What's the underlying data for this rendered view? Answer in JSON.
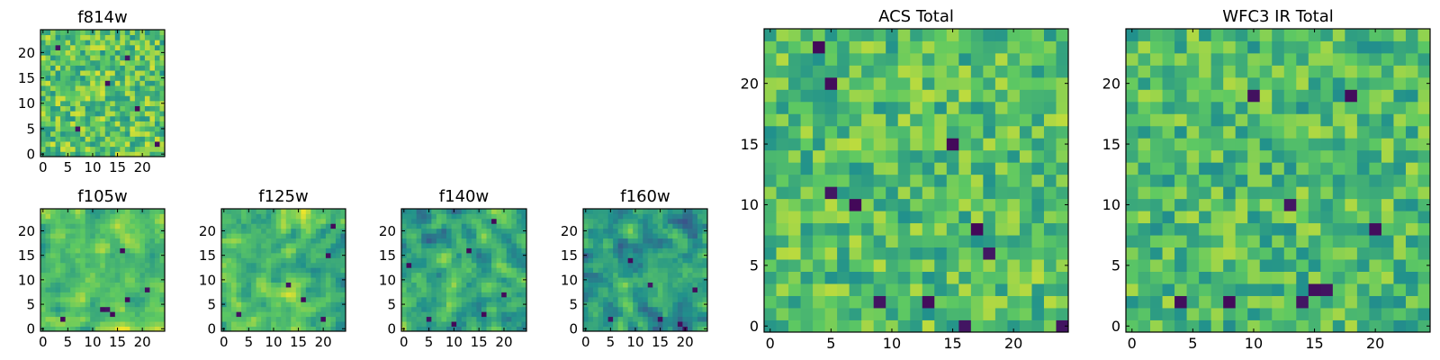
{
  "colormap": {
    "name": "viridis",
    "stops": [
      "#440154",
      "#3b528b",
      "#21918c",
      "#5ec962",
      "#fde725"
    ]
  },
  "chart_data": [
    {
      "id": "f814w",
      "type": "heatmap",
      "title": "f814w",
      "grid_size": [
        25,
        25
      ],
      "xlim": [
        -0.5,
        24.5
      ],
      "ylim": [
        -0.5,
        24.5
      ],
      "xticks": [
        0,
        5,
        10,
        15,
        20
      ],
      "yticks": [
        0,
        5,
        10,
        15,
        20
      ],
      "mean_level": 0.72,
      "spread": 0.22,
      "smoothness": 0,
      "dark_pixels": [
        [
          3,
          21
        ],
        [
          13,
          14
        ],
        [
          23,
          2
        ],
        [
          17,
          19
        ],
        [
          7,
          5
        ],
        [
          19,
          9
        ]
      ]
    },
    {
      "id": "f105w",
      "type": "heatmap",
      "title": "f105w",
      "grid_size": [
        25,
        25
      ],
      "xlim": [
        -0.5,
        24.5
      ],
      "ylim": [
        -0.5,
        24.5
      ],
      "xticks": [
        0,
        5,
        10,
        15,
        20
      ],
      "yticks": [
        0,
        5,
        10,
        15,
        20
      ],
      "mean_level": 0.72,
      "spread": 0.2,
      "smoothness": 1,
      "dark_pixels": [
        [
          12,
          4
        ],
        [
          13,
          4
        ],
        [
          14,
          3
        ],
        [
          17,
          6
        ],
        [
          21,
          8
        ],
        [
          16,
          16
        ],
        [
          4,
          2
        ]
      ]
    },
    {
      "id": "f125w",
      "type": "heatmap",
      "title": "f125w",
      "grid_size": [
        25,
        25
      ],
      "xlim": [
        -0.5,
        24.5
      ],
      "ylim": [
        -0.5,
        24.5
      ],
      "xticks": [
        0,
        5,
        10,
        15,
        20
      ],
      "yticks": [
        0,
        5,
        10,
        15,
        20
      ],
      "mean_level": 0.68,
      "spread": 0.22,
      "smoothness": 1,
      "dark_pixels": [
        [
          22,
          21
        ],
        [
          21,
          15
        ],
        [
          13,
          9
        ],
        [
          3,
          3
        ],
        [
          20,
          2
        ],
        [
          16,
          6
        ]
      ]
    },
    {
      "id": "f140w",
      "type": "heatmap",
      "title": "f140w",
      "grid_size": [
        25,
        25
      ],
      "xlim": [
        -0.5,
        24.5
      ],
      "ylim": [
        -0.5,
        24.5
      ],
      "xticks": [
        0,
        5,
        10,
        15,
        20
      ],
      "yticks": [
        0,
        5,
        10,
        15,
        20
      ],
      "mean_level": 0.6,
      "spread": 0.24,
      "smoothness": 1,
      "dark_pixels": [
        [
          18,
          22
        ],
        [
          13,
          16
        ],
        [
          1,
          13
        ],
        [
          20,
          7
        ],
        [
          10,
          1
        ],
        [
          16,
          3
        ],
        [
          5,
          2
        ]
      ]
    },
    {
      "id": "f160w",
      "type": "heatmap",
      "title": "f160w",
      "grid_size": [
        25,
        25
      ],
      "xlim": [
        -0.5,
        24.5
      ],
      "ylim": [
        -0.5,
        24.5
      ],
      "xticks": [
        0,
        5,
        10,
        15,
        20
      ],
      "yticks": [
        0,
        5,
        10,
        15,
        20
      ],
      "mean_level": 0.55,
      "spread": 0.25,
      "smoothness": 1,
      "dark_pixels": [
        [
          15,
          2
        ],
        [
          19,
          1
        ],
        [
          13,
          9
        ],
        [
          22,
          8
        ],
        [
          9,
          14
        ],
        [
          5,
          2
        ],
        [
          20,
          0
        ]
      ]
    },
    {
      "id": "acs_total",
      "type": "heatmap",
      "title": "ACS Total",
      "grid_size": [
        25,
        25
      ],
      "xlim": [
        -0.5,
        24.5
      ],
      "ylim": [
        -0.5,
        24.5
      ],
      "xticks": [
        0,
        5,
        10,
        15,
        20
      ],
      "yticks": [
        0,
        5,
        10,
        15,
        20
      ],
      "mean_level": 0.7,
      "spread": 0.2,
      "smoothness": 0,
      "dark_pixels": [
        [
          4,
          23
        ],
        [
          5,
          20
        ],
        [
          15,
          15
        ],
        [
          5,
          11
        ],
        [
          7,
          10
        ],
        [
          17,
          8
        ],
        [
          18,
          6
        ],
        [
          16,
          0
        ],
        [
          24,
          0
        ],
        [
          13,
          2
        ],
        [
          9,
          2
        ]
      ]
    },
    {
      "id": "wfc3_ir_total",
      "type": "heatmap",
      "title": "WFC3 IR Total",
      "grid_size": [
        25,
        25
      ],
      "xlim": [
        -0.5,
        24.5
      ],
      "ylim": [
        -0.5,
        24.5
      ],
      "xticks": [
        0,
        5,
        10,
        15,
        20
      ],
      "yticks": [
        0,
        5,
        10,
        15,
        20
      ],
      "mean_level": 0.68,
      "spread": 0.2,
      "smoothness": 0,
      "dark_pixels": [
        [
          10,
          19
        ],
        [
          18,
          19
        ],
        [
          13,
          10
        ],
        [
          20,
          8
        ],
        [
          15,
          3
        ],
        [
          16,
          3
        ],
        [
          14,
          2
        ],
        [
          4,
          2
        ],
        [
          8,
          2
        ]
      ]
    }
  ]
}
